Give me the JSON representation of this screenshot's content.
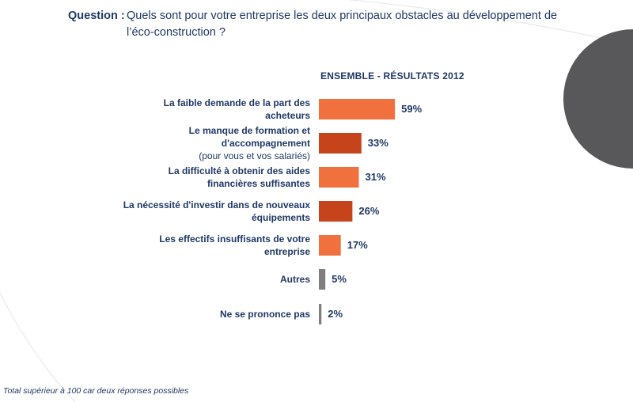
{
  "question": {
    "label": "Question :",
    "line1": "Quels sont pour votre entreprise les deux principaux obstacles au développement de",
    "line2": "l’éco-construction ?"
  },
  "footnote": "Total supérieur à 100 car deux réponses possibles",
  "colors": {
    "orange_light": "#f0713e",
    "orange_dark": "#c6441b",
    "grey": "#7f7f7f",
    "text_navy": "#1f3864",
    "deco_circle": "#58585a"
  },
  "chart_data": {
    "type": "bar",
    "orientation": "horizontal",
    "title": "ENSEMBLE - RÉSULTATS 2012",
    "unit": "%",
    "xlim": [
      0,
      100
    ],
    "categories": [
      {
        "label": "La faible demande de la part des acheteurs",
        "lines": [
          "La faible demande de la part des",
          "acheteurs"
        ],
        "sub": "",
        "value": 59,
        "display": "59%",
        "color": "#f0713e"
      },
      {
        "label": "Le manque de formation et d'accompagnement (pour vous et vos salariés)",
        "lines": [
          "Le manque de formation et",
          "d'accompagnement"
        ],
        "sub": "(pour vous et vos salariés)",
        "value": 33,
        "display": "33%",
        "color": "#c6441b"
      },
      {
        "label": "La difficulté à obtenir des aides financières suffisantes",
        "lines": [
          "La difficulté à obtenir des aides",
          "financières suffisantes"
        ],
        "sub": "",
        "value": 31,
        "display": "31%",
        "color": "#f0713e"
      },
      {
        "label": "La nécessité d'investir dans de nouveaux équipements",
        "lines": [
          "La nécessité d'investir dans de nouveaux",
          "équipements"
        ],
        "sub": "",
        "value": 26,
        "display": "26%",
        "color": "#c6441b"
      },
      {
        "label": "Les effectifs insuffisants de votre entreprise",
        "lines": [
          "Les effectifs insuffisants de votre",
          "entreprise"
        ],
        "sub": "",
        "value": 17,
        "display": "17%",
        "color": "#f0713e"
      },
      {
        "label": "Autres",
        "lines": [
          "Autres"
        ],
        "sub": "",
        "value": 5,
        "display": "5%",
        "color": "#7f7f7f"
      },
      {
        "label": "Ne se prononce pas",
        "lines": [
          "Ne se prononce pas"
        ],
        "sub": "",
        "value": 2,
        "display": "2%",
        "color": "#7f7f7f"
      }
    ]
  }
}
